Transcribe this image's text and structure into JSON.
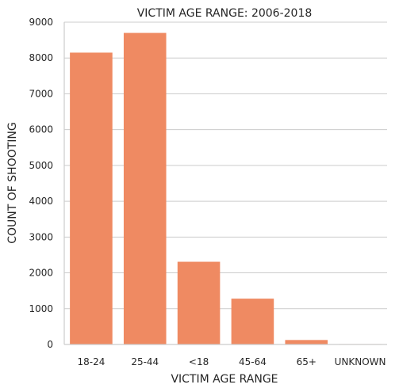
{
  "chart_data": {
    "type": "bar",
    "title": "VICTIM AGE RANGE: 2006-2018",
    "xlabel": "VICTIM AGE RANGE",
    "ylabel": "COUNT OF SHOOTING",
    "categories": [
      "18-24",
      "25-44",
      "<18",
      "45-64",
      "65+",
      "UNKNOWN"
    ],
    "values": [
      8150,
      8700,
      2310,
      1280,
      125,
      12
    ],
    "ylim": [
      0,
      9000
    ],
    "yticks": [
      0,
      1000,
      2000,
      3000,
      4000,
      5000,
      6000,
      7000,
      8000,
      9000
    ],
    "grid": "horizontal",
    "bar_color": "#ef8a62"
  }
}
